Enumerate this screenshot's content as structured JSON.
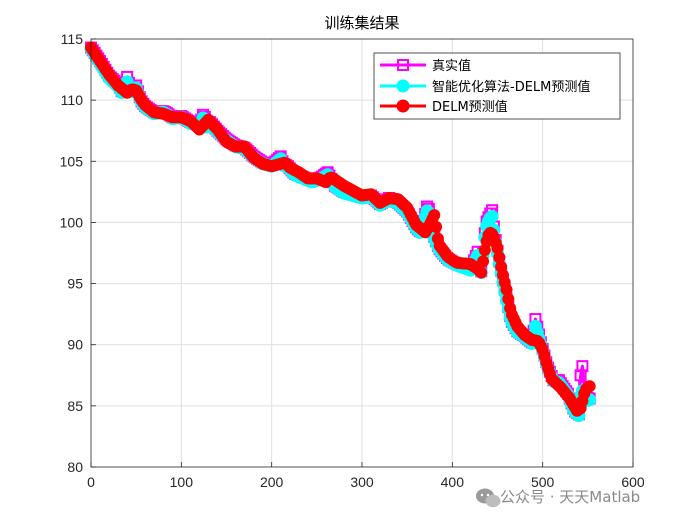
{
  "chart_data": {
    "type": "line",
    "title": "训练集结果",
    "xlabel": "",
    "ylabel": "",
    "xlim": [
      0,
      600
    ],
    "ylim": [
      80,
      115
    ],
    "xticks": [
      0,
      100,
      200,
      300,
      400,
      500,
      600
    ],
    "yticks": [
      80,
      85,
      90,
      95,
      100,
      105,
      110,
      115
    ],
    "grid": true,
    "legend_position": "top-right",
    "series": [
      {
        "name": "真实值",
        "color": "#ff00ff",
        "marker": "square",
        "x": [
          0,
          10,
          20,
          30,
          35,
          40,
          45,
          50,
          55,
          60,
          70,
          80,
          85,
          90,
          100,
          110,
          120,
          125,
          128,
          132,
          140,
          150,
          160,
          170,
          180,
          190,
          200,
          210,
          213,
          218,
          225,
          235,
          245,
          255,
          262,
          270,
          280,
          290,
          300,
          310,
          320,
          330,
          340,
          350,
          360,
          365,
          373,
          378,
          385,
          395,
          405,
          420,
          428,
          432,
          437,
          441,
          444,
          447,
          452,
          458,
          465,
          472,
          480,
          488,
          492,
          498,
          505,
          512,
          518,
          523,
          528,
          535,
          540,
          543,
          547,
          552
        ],
        "y": [
          114.3,
          113.2,
          112.0,
          111.3,
          110.6,
          111.9,
          110.7,
          111.2,
          110.0,
          109.5,
          109.0,
          109.1,
          108.9,
          108.6,
          108.7,
          108.2,
          108.0,
          109.0,
          107.9,
          108.2,
          107.5,
          106.8,
          106.3,
          106.1,
          105.4,
          104.9,
          104.7,
          105.4,
          104.8,
          104.6,
          104.0,
          103.7,
          103.4,
          103.7,
          104.1,
          103.0,
          102.5,
          102.3,
          102.1,
          102.2,
          101.5,
          102.0,
          101.6,
          100.9,
          99.6,
          99.2,
          101.6,
          99.2,
          97.9,
          97.0,
          96.6,
          96.2,
          97.6,
          96.0,
          99.9,
          100.6,
          101.0,
          99.0,
          96.8,
          94.5,
          92.0,
          91.1,
          90.7,
          90.2,
          92.1,
          90.2,
          88.3,
          87.1,
          87.1,
          86.5,
          86.0,
          84.6,
          84.3,
          89.1,
          85.7,
          85.6
        ]
      },
      {
        "name": "智能优化算法-DELM预测值",
        "color": "#00ffff",
        "marker": "circle",
        "x": [
          0,
          10,
          20,
          30,
          35,
          40,
          45,
          50,
          55,
          60,
          70,
          80,
          85,
          90,
          100,
          110,
          120,
          125,
          128,
          132,
          140,
          150,
          160,
          170,
          180,
          190,
          200,
          210,
          213,
          218,
          225,
          235,
          245,
          255,
          262,
          270,
          280,
          290,
          300,
          310,
          320,
          330,
          340,
          350,
          360,
          365,
          373,
          378,
          385,
          395,
          405,
          420,
          428,
          432,
          437,
          441,
          444,
          447,
          452,
          458,
          465,
          472,
          480,
          488,
          492,
          498,
          505,
          512,
          518,
          523,
          528,
          535,
          540,
          543,
          547,
          552
        ],
        "y": [
          114.2,
          113.0,
          111.8,
          111.1,
          110.5,
          111.5,
          110.6,
          111.0,
          109.9,
          109.4,
          108.9,
          109.0,
          108.8,
          108.5,
          108.6,
          108.1,
          107.9,
          108.7,
          107.8,
          108.1,
          107.4,
          106.7,
          106.2,
          106.0,
          105.3,
          104.8,
          104.6,
          105.2,
          104.7,
          104.5,
          103.9,
          103.6,
          103.3,
          103.6,
          103.9,
          102.9,
          102.4,
          102.2,
          102.0,
          102.1,
          101.4,
          101.9,
          101.5,
          100.8,
          99.5,
          99.1,
          101.2,
          99.1,
          97.8,
          96.9,
          96.5,
          96.1,
          97.3,
          95.9,
          99.5,
          100.3,
          100.5,
          98.8,
          96.6,
          94.3,
          91.9,
          91.0,
          90.6,
          90.1,
          91.5,
          90.0,
          88.2,
          87.0,
          86.9,
          86.4,
          85.9,
          84.5,
          84.2,
          86.5,
          85.4,
          85.5
        ]
      },
      {
        "name": "DELM预测值",
        "color": "#ff0000",
        "marker": "circle",
        "x": [
          0,
          10,
          20,
          30,
          40,
          45,
          50,
          55,
          60,
          70,
          80,
          90,
          100,
          110,
          120,
          125,
          130,
          140,
          150,
          160,
          170,
          180,
          190,
          200,
          210,
          215,
          220,
          230,
          240,
          250,
          260,
          265,
          270,
          280,
          290,
          300,
          310,
          320,
          330,
          340,
          350,
          360,
          370,
          375,
          380,
          385,
          395,
          405,
          420,
          428,
          432,
          437,
          441,
          445,
          450,
          455,
          460,
          465,
          472,
          480,
          488,
          495,
          500,
          505,
          510,
          520,
          530,
          538,
          542,
          547,
          552
        ],
        "y": [
          114.3,
          113.2,
          112.1,
          111.2,
          110.6,
          110.9,
          110.8,
          110.1,
          109.6,
          109.0,
          108.9,
          108.6,
          108.6,
          108.3,
          107.6,
          108.0,
          108.4,
          107.6,
          106.6,
          106.2,
          106.2,
          105.3,
          104.8,
          104.6,
          104.8,
          104.9,
          104.5,
          104.1,
          103.6,
          103.6,
          103.3,
          103.7,
          103.5,
          103.0,
          102.6,
          102.2,
          102.3,
          101.6,
          102.0,
          101.9,
          101.2,
          99.8,
          99.2,
          99.8,
          100.6,
          98.2,
          97.2,
          96.7,
          96.6,
          96.2,
          95.9,
          98.2,
          99.2,
          99.0,
          97.9,
          96.0,
          94.5,
          92.6,
          91.5,
          90.8,
          90.4,
          90.3,
          89.6,
          88.3,
          87.2,
          86.5,
          85.6,
          84.6,
          84.8,
          86.3,
          86.6
        ]
      }
    ]
  },
  "watermark": {
    "text": "公众号 · 天天Matlab",
    "icon": "wechat-icon"
  }
}
